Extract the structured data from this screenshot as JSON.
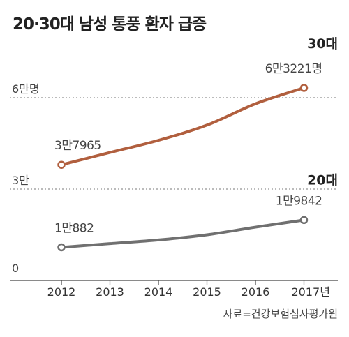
{
  "chart_data": {
    "type": "line",
    "title": "20·30대 남성 통풍 환자 급증",
    "categories": [
      "2012",
      "2013",
      "2014",
      "2015",
      "2016",
      "2017년"
    ],
    "x": [
      2012,
      2013,
      2014,
      2015,
      2016,
      2017
    ],
    "ylim": [
      0,
      70000
    ],
    "y_ticks": [
      {
        "value": 0,
        "label": "0"
      },
      {
        "value": 30000,
        "label": "3만"
      },
      {
        "value": 60000,
        "label": "6만명"
      }
    ],
    "grid": "dotted at 3만 and 6만",
    "series": [
      {
        "name": "30대",
        "color": "#b15f3e",
        "values": [
          37965,
          42000,
          46000,
          51000,
          58000,
          63221
        ],
        "labels": [
          {
            "index": 0,
            "text": "3만7965"
          },
          {
            "index": 5,
            "text": "6만3221명"
          }
        ]
      },
      {
        "name": "20대",
        "color": "#707070",
        "values": [
          10882,
          12100,
          13300,
          15000,
          17500,
          19842
        ],
        "labels": [
          {
            "index": 0,
            "text": "1만882"
          },
          {
            "index": 5,
            "text": "1만9842"
          }
        ]
      }
    ],
    "source": "자료=건강보험심사평가원"
  }
}
